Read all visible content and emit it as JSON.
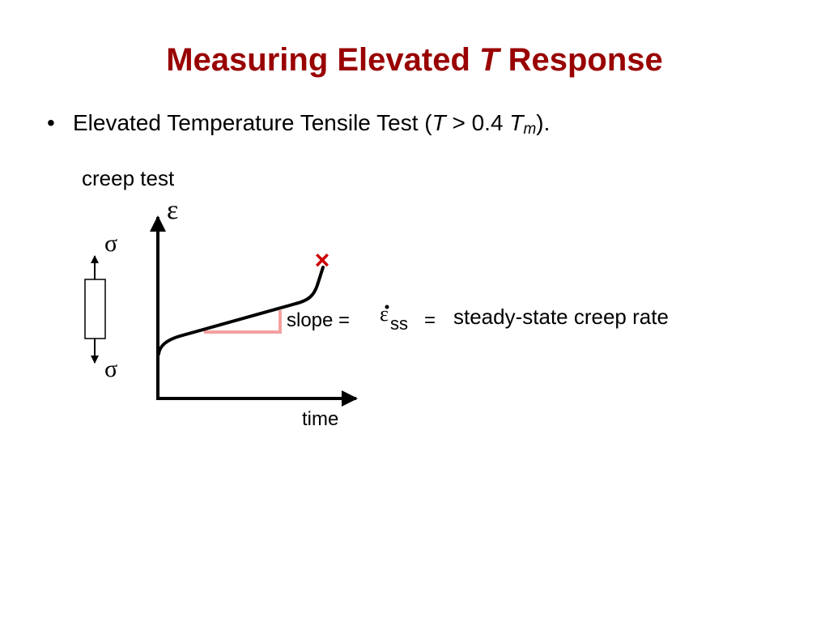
{
  "title": {
    "part1": "Measuring Elevated",
    "italic": "T",
    "part2": "Response"
  },
  "bullet": {
    "marker": "•",
    "text_before": "Elevated Temperature Tensile Test (",
    "italic_T": "T",
    "text_middle": " > 0.4 ",
    "italic_Tm": "T",
    "subscript_m": "m",
    "text_after": ")."
  },
  "diagram": {
    "heading": "creep test",
    "y_axis_symbol": "ε",
    "x_axis_label": "time",
    "stress_symbol_top": "σ",
    "stress_symbol_bottom": "σ",
    "failure_mark": "×",
    "slope_label": "slope =",
    "strain_rate_symbol": "ε",
    "strain_rate_subscript": "ss",
    "equals": "=",
    "rate_description": "steady-state creep rate",
    "colors": {
      "curve": "#000000",
      "slope_triangle": "#f4a0a0",
      "failure_mark": "#cc0000",
      "title": "#990000"
    }
  }
}
